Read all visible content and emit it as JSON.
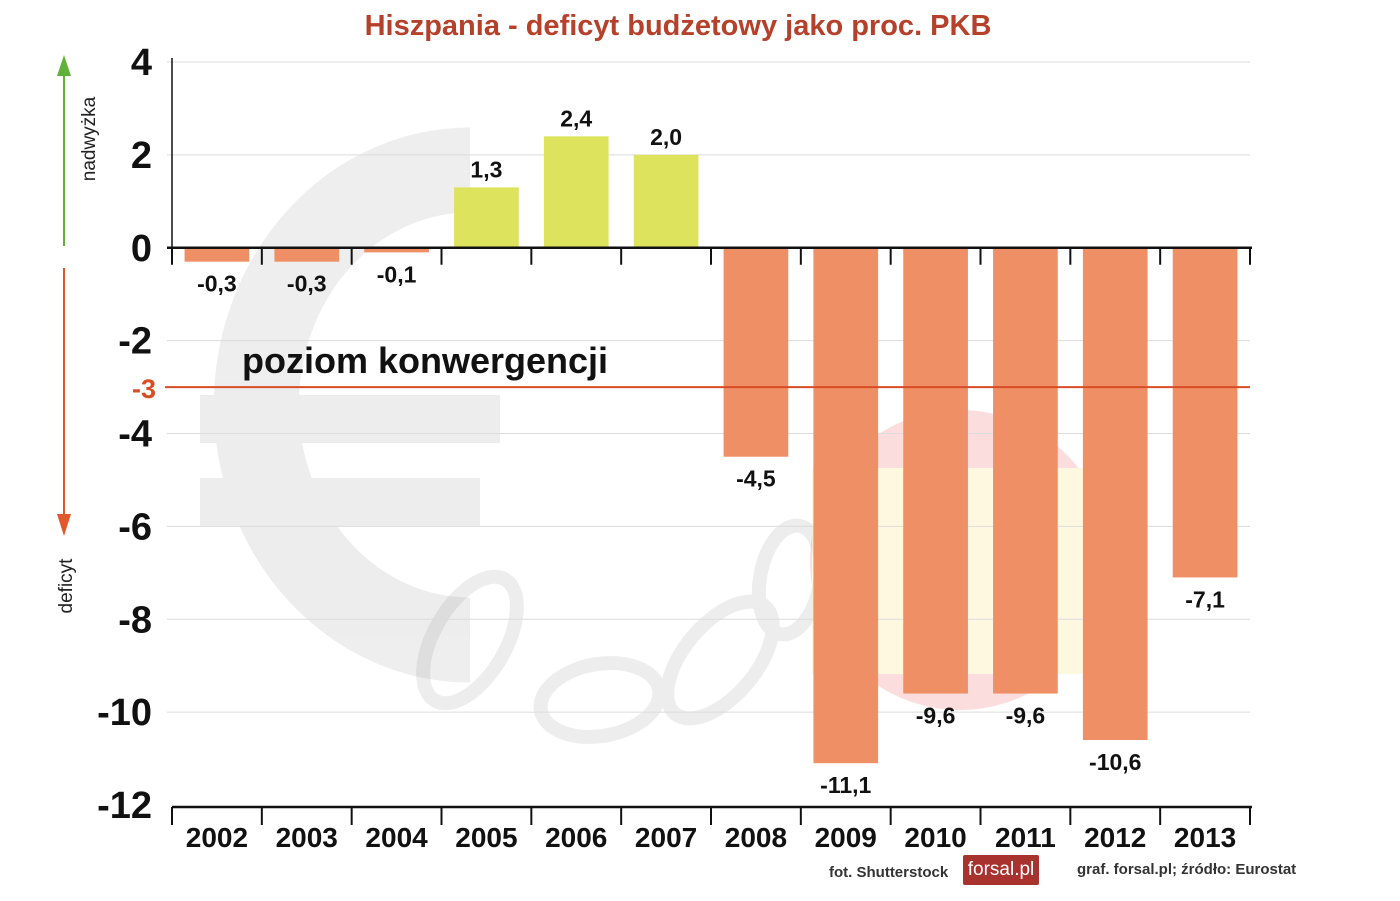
{
  "title": "Hiszpania - deficyt budżetowy jako proc. PKB",
  "indicators": {
    "up_label": "nadwyżka",
    "down_label": "deficyt",
    "up_color": "#5fb13a",
    "down_color": "#e0582c"
  },
  "convergence": {
    "label": "poziom konwergencji",
    "value": -3,
    "value_label": "-3",
    "color": "#d94d26"
  },
  "footer": {
    "photo_credit": "fot. Shutterstock",
    "logo_text": "forsal.pl",
    "source": "graf. forsal.pl;  źródło: Eurostat"
  },
  "colors": {
    "positive_bar": "#dde35c",
    "negative_bar": "#ef8f65",
    "title": "#b5412b"
  },
  "chart_data": {
    "type": "bar",
    "title": "Hiszpania - deficyt budżetowy jako proc. PKB",
    "xlabel": "",
    "ylabel": "",
    "categories": [
      "2002",
      "2003",
      "2004",
      "2005",
      "2006",
      "2007",
      "2008",
      "2009",
      "2010",
      "2011",
      "2012",
      "2013"
    ],
    "values": [
      -0.3,
      -0.3,
      -0.1,
      1.3,
      2.4,
      2.0,
      -4.5,
      -11.1,
      -9.6,
      -9.6,
      -10.6,
      -7.1
    ],
    "value_labels": [
      "-0,3",
      "-0,3",
      "-0,1",
      "1,3",
      "2,4",
      "2,0",
      "-4,5",
      "-11,1",
      "-9,6",
      "-9,6",
      "-10,6",
      "-7,1"
    ],
    "ylim": [
      -12,
      4
    ],
    "yticks": [
      4,
      2,
      0,
      -2,
      -4,
      -6,
      -8,
      -10,
      -12
    ],
    "ytick_labels": [
      "4",
      "2",
      "0",
      "-2",
      "-4",
      "-6",
      "-8",
      "-10",
      "-12"
    ],
    "grid": true,
    "legend": "none"
  }
}
